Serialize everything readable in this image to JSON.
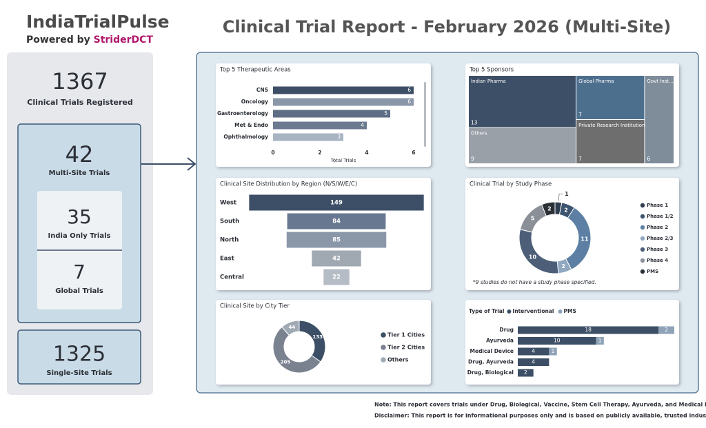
{
  "header": {
    "brand": "IndiaTrialPulse",
    "powered_by": "Powered by",
    "partner": "StriderDCT",
    "title": "Clinical Trial Report - February 2026 (Multi-Site)"
  },
  "kpis": {
    "total": {
      "value": 1367,
      "label": "Clinical Trials Registered"
    },
    "multi_site": {
      "value": 42,
      "label": "Multi-Site Trials"
    },
    "india_only": {
      "value": 35,
      "label": "India Only Trials"
    },
    "global": {
      "value": 7,
      "label": "Global Trials"
    },
    "single_site": {
      "value": 1325,
      "label": "Single-Site Trials"
    }
  },
  "chart_data": [
    {
      "type": "bar",
      "title": "Top 5 Therapeutic Areas",
      "categories": [
        "CNS",
        "Oncology",
        "Gastroenterology",
        "Met & Endo",
        "Ophthalmology"
      ],
      "values": [
        6,
        6,
        5,
        4,
        3
      ],
      "colors": [
        "#3d4f66",
        "#8a97a8",
        "#5d6e85",
        "#6b7a8f",
        "#a9b4c2"
      ],
      "xlim": [
        0,
        6
      ],
      "xticks": [
        0,
        2,
        4,
        6
      ],
      "x_label": "Total Trials"
    },
    {
      "type": "treemap",
      "title": "Top 5 Sponsors",
      "categories": [
        "Indian Pharma",
        "Global Pharma",
        "Govt Inst...",
        "Others",
        "Private Research Institution"
      ],
      "values": [
        13,
        7,
        6,
        9,
        7
      ],
      "colors": [
        "#3d4f66",
        "#4d6f8e",
        "#7f8c9a",
        "#9aa0a8",
        "#6e6e6e"
      ]
    },
    {
      "type": "funnel",
      "title": "Clinical Site Distribution by Region (N/S/W/E/C)",
      "categories": [
        "West",
        "South",
        "North",
        "East",
        "Central"
      ],
      "values": [
        149,
        84,
        85,
        42,
        22
      ],
      "colors": [
        "#3d4f66",
        "#687891",
        "#8a97a8",
        "#a0a8b2",
        "#b5bcc5"
      ]
    },
    {
      "type": "donut",
      "title": "Clinical Trial by Study Phase",
      "categories": [
        "Phase 1",
        "Phase 1/2",
        "Phase 2",
        "Phase 2/3",
        "Phase 3",
        "Phase 4",
        "PMS"
      ],
      "values": [
        1,
        2,
        11,
        2,
        10,
        5,
        2
      ],
      "colors": [
        "#2f3d4f",
        "#3d5470",
        "#5d7fa3",
        "#8fa8c0",
        "#4d5f78",
        "#8a8f98",
        "#2b2f36"
      ],
      "note": "*9 studies do not have a study phase specified."
    },
    {
      "type": "donut",
      "title": "Clinical Site by City Tier",
      "categories": [
        "Tier 1 Cities",
        "Tier 2 Cities",
        "Others"
      ],
      "values": [
        133,
        205,
        44
      ],
      "colors": [
        "#3d4f66",
        "#7a8290",
        "#a0aab5"
      ]
    },
    {
      "type": "stacked_bar",
      "title": "Type of Trial",
      "categories": [
        "Drug",
        "Ayurveda",
        "Medical Device",
        "Drug, Ayurveda",
        "Drug, Biological"
      ],
      "series": [
        {
          "name": "Interventional",
          "color": "#3d4f66",
          "values": [
            18,
            10,
            4,
            4,
            2
          ]
        },
        {
          "name": "PMS",
          "color": "#8fa3b8",
          "values": [
            2,
            1,
            1,
            null,
            null
          ]
        }
      ]
    }
  ],
  "notes": [
    "Note: This report covers trials under Drug, Biological, Vaccine, Stem Cell Therapy, Ayurveda, and Medical Device.",
    "Disclaimer: This report is for informational purposes only and is based on publicly available, trusted industry sources."
  ]
}
